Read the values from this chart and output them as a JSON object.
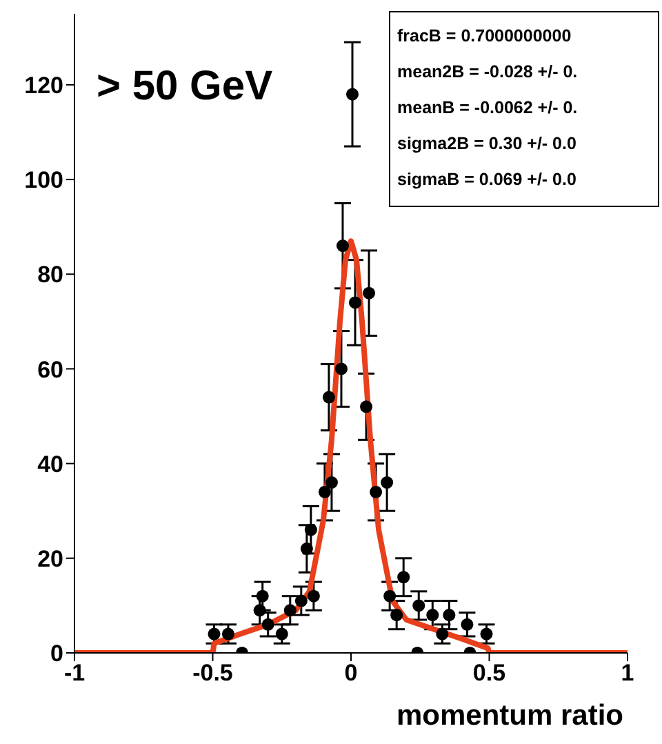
{
  "chart_data": {
    "type": "scatter",
    "xlabel": "momentum ratio",
    "annotations": [
      "> 50 GeV",
      "fracB =  0.7000000000",
      "mean2B = -0.028 +/- 0.",
      "meanB = -0.0062 +/- 0.",
      "sigma2B =  0.30 +/- 0.0",
      "sigmaB =  0.069 +/- 0.0"
    ],
    "xlim": [
      -1,
      1
    ],
    "xticks": [
      -1,
      -0.5,
      0,
      0.5,
      1
    ],
    "ylim": [
      0,
      135
    ],
    "yticks": [
      0,
      20,
      40,
      60,
      80,
      100,
      120
    ],
    "grid": false,
    "legend": false,
    "series": [
      {
        "marker": "circle",
        "color": "#000000",
        "x": [
          -0.495,
          -0.444,
          -0.394,
          -0.33,
          -0.32,
          -0.3,
          -0.25,
          -0.22,
          -0.18,
          -0.16,
          -0.145,
          -0.135,
          -0.095,
          -0.07,
          -0.08,
          -0.035,
          -0.03,
          0.005,
          0.015,
          0.055,
          0.065,
          0.09,
          0.13,
          0.14,
          0.165,
          0.19,
          0.24,
          0.245,
          0.295,
          0.33,
          0.355,
          0.42,
          0.43,
          0.49
        ],
        "values": [
          4,
          4,
          0,
          9,
          12,
          6,
          4,
          9,
          11,
          22,
          26,
          12,
          34,
          36,
          54,
          60,
          86,
          118,
          74,
          52,
          76,
          34,
          36,
          12,
          8,
          16,
          0,
          10,
          8,
          4,
          8,
          6,
          0,
          4
        ],
        "errors": [
          2,
          2,
          null,
          3,
          3,
          2.5,
          2,
          3,
          3,
          5,
          5,
          3,
          6,
          6,
          7,
          8,
          9,
          11,
          9,
          7,
          9,
          6,
          6,
          3,
          3,
          4,
          null,
          3,
          3,
          2,
          3,
          2.5,
          null,
          2
        ]
      },
      {
        "type": "line",
        "marker": "none",
        "color": "#e8401c",
        "x": [
          -1,
          -0.5,
          -0.495,
          -0.4,
          -0.3,
          -0.2,
          -0.15,
          -0.1,
          -0.07,
          -0.04,
          -0.02,
          0,
          0.02,
          0.04,
          0.07,
          0.1,
          0.15,
          0.2,
          0.3,
          0.4,
          0.495,
          0.5,
          1
        ],
        "values": [
          0,
          0,
          2,
          4,
          6,
          9,
          13,
          28,
          45,
          70,
          83,
          87,
          83,
          70,
          45,
          26,
          11,
          7,
          5,
          3,
          1,
          0,
          0
        ]
      }
    ]
  }
}
